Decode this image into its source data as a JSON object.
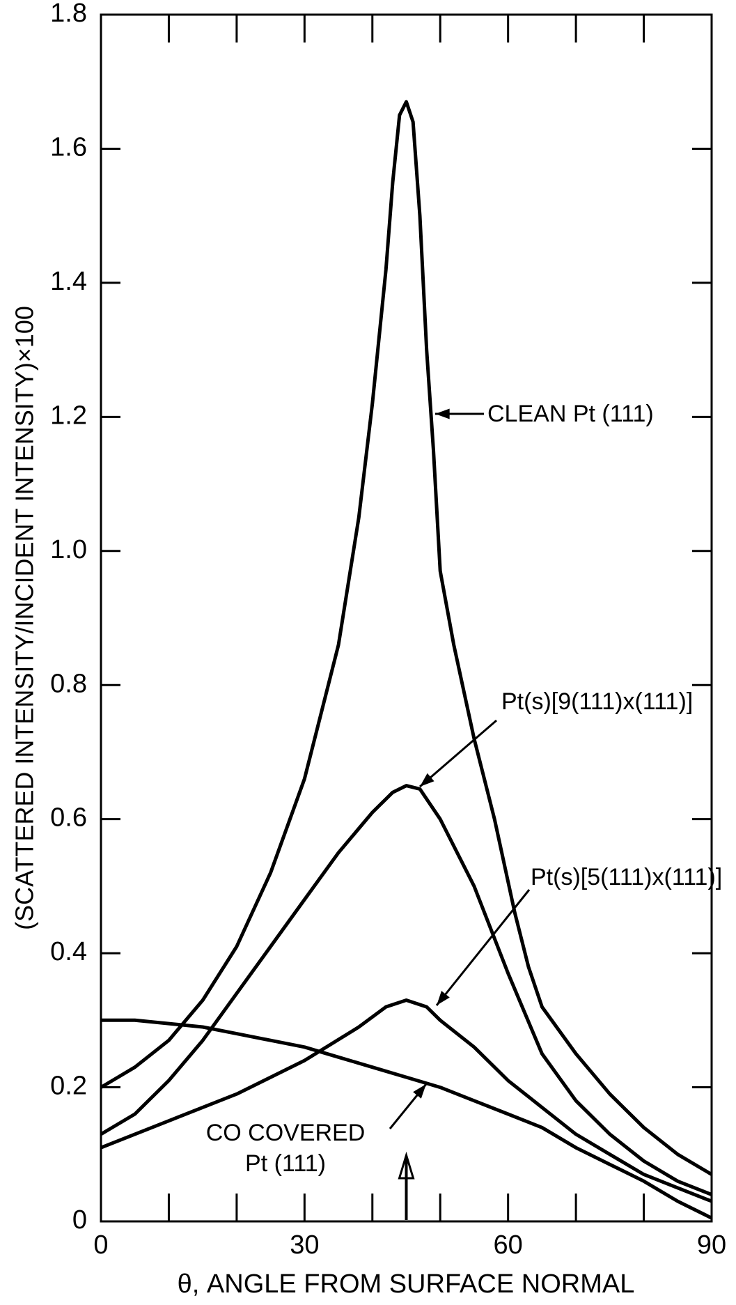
{
  "chart_data": {
    "type": "line",
    "ylabel": "(SCATTERED INTENSITY/INCIDENT INTENSITY)×100",
    "xlabel": "θ, ANGLE FROM SURFACE NORMAL",
    "xlim": [
      0,
      90
    ],
    "xticks": [
      0,
      30,
      60,
      90
    ],
    "xminorticks": [
      10,
      20,
      40,
      50,
      70,
      80
    ],
    "ylim": [
      0,
      1.8
    ],
    "yticks": [
      0,
      0.2,
      0.4,
      0.6,
      0.8,
      {
        "value": 1,
        "label": "1.0"
      },
      1.2,
      1.4,
      1.6,
      1.8
    ],
    "arrow_x": 45,
    "series": [
      {
        "name": "CLEAN Pt (111)",
        "color": "#000000",
        "x": [
          0,
          5,
          10,
          15,
          20,
          25,
          30,
          35,
          38,
          40,
          42,
          43,
          44,
          45,
          46,
          47,
          48,
          49,
          50,
          52,
          55,
          58,
          61,
          63,
          65,
          70,
          75,
          80,
          85,
          90
        ],
        "values": [
          0.2,
          0.23,
          0.27,
          0.33,
          0.41,
          0.52,
          0.66,
          0.86,
          1.05,
          1.22,
          1.42,
          1.55,
          1.65,
          1.67,
          1.64,
          1.5,
          1.3,
          1.15,
          0.97,
          0.86,
          0.72,
          0.6,
          0.46,
          0.38,
          0.32,
          0.25,
          0.19,
          0.14,
          0.1,
          0.07
        ]
      },
      {
        "name": "Pt(s)[9(111)x(111)]",
        "color": "#000000",
        "x": [
          0,
          5,
          10,
          15,
          20,
          25,
          30,
          35,
          40,
          43,
          45,
          47,
          50,
          55,
          60,
          65,
          70,
          75,
          80,
          85,
          90
        ],
        "values": [
          0.13,
          0.16,
          0.21,
          0.27,
          0.34,
          0.41,
          0.48,
          0.55,
          0.61,
          0.64,
          0.65,
          0.645,
          0.6,
          0.5,
          0.37,
          0.25,
          0.18,
          0.13,
          0.09,
          0.06,
          0.04
        ]
      },
      {
        "name": "Pt(s)[5(111)x(111)]",
        "color": "#000000",
        "x": [
          0,
          10,
          20,
          30,
          38,
          42,
          45,
          48,
          50,
          55,
          60,
          65,
          70,
          75,
          80,
          85,
          90
        ],
        "values": [
          0.11,
          0.15,
          0.19,
          0.24,
          0.29,
          0.32,
          0.33,
          0.32,
          0.3,
          0.26,
          0.21,
          0.17,
          0.13,
          0.1,
          0.07,
          0.05,
          0.03
        ]
      },
      {
        "name": "CO COVERED Pt (111)",
        "color": "#000000",
        "x": [
          0,
          5,
          10,
          15,
          20,
          25,
          30,
          35,
          40,
          45,
          50,
          55,
          60,
          65,
          70,
          75,
          80,
          85,
          90
        ],
        "values": [
          0.3,
          0.3,
          0.295,
          0.29,
          0.28,
          0.27,
          0.26,
          0.245,
          0.23,
          0.215,
          0.2,
          0.18,
          0.16,
          0.14,
          0.11,
          0.085,
          0.06,
          0.03,
          0.005
        ]
      }
    ]
  }
}
